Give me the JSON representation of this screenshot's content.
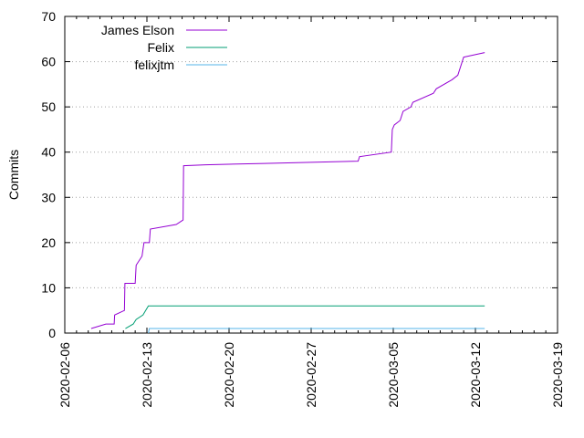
{
  "chart_data": {
    "type": "line",
    "title": "",
    "xlabel": "",
    "ylabel": "Commits",
    "x_type": "date",
    "xlim": [
      "2020-02-06",
      "2020-03-19"
    ],
    "ylim": [
      0,
      70
    ],
    "x_ticks": [
      "2020-02-06",
      "2020-02-13",
      "2020-02-20",
      "2020-02-27",
      "2020-03-05",
      "2020-03-12",
      "2020-03-19"
    ],
    "y_ticks": [
      0,
      10,
      20,
      30,
      40,
      50,
      60,
      70
    ],
    "grid": true,
    "legend_position": "top-left",
    "line_style": "step",
    "series": [
      {
        "name": "James Elson",
        "color": "#9400d3",
        "points": [
          [
            "2020-02-08T06:00",
            1
          ],
          [
            "2020-02-09T12:00",
            2
          ],
          [
            "2020-02-10T05:00",
            2
          ],
          [
            "2020-02-10T06:00",
            4
          ],
          [
            "2020-02-11T02:00",
            5
          ],
          [
            "2020-02-11T03:00",
            11
          ],
          [
            "2020-02-12T00:00",
            11
          ],
          [
            "2020-02-12T02:00",
            15
          ],
          [
            "2020-02-12T14:00",
            17
          ],
          [
            "2020-02-12T18:00",
            20
          ],
          [
            "2020-02-13T05:00",
            20
          ],
          [
            "2020-02-13T07:00",
            23
          ],
          [
            "2020-02-15T12:00",
            24
          ],
          [
            "2020-02-16T02:00",
            25
          ],
          [
            "2020-02-16T03:00",
            37
          ],
          [
            "2020-02-18T00:00",
            37.2
          ],
          [
            "2020-02-23T00:00",
            37.5
          ],
          [
            "2020-03-02T00:00",
            38
          ],
          [
            "2020-03-02T03:00",
            39
          ],
          [
            "2020-03-04T20:00",
            40
          ],
          [
            "2020-03-04T22:00",
            45
          ],
          [
            "2020-03-05T02:00",
            46
          ],
          [
            "2020-03-05T14:00",
            47
          ],
          [
            "2020-03-05T20:00",
            49
          ],
          [
            "2020-03-06T12:00",
            50
          ],
          [
            "2020-03-06T16:00",
            51
          ],
          [
            "2020-03-08T10:00",
            53
          ],
          [
            "2020-03-08T16:00",
            54
          ],
          [
            "2020-03-10T00:00",
            56
          ],
          [
            "2020-03-10T12:00",
            57
          ],
          [
            "2020-03-11T00:00",
            61
          ],
          [
            "2020-03-12T19:00",
            62
          ]
        ]
      },
      {
        "name": "Felix",
        "color": "#009e73",
        "points": [
          [
            "2020-02-11T04:00",
            1
          ],
          [
            "2020-02-11T20:00",
            2
          ],
          [
            "2020-02-12T02:00",
            3
          ],
          [
            "2020-02-12T16:00",
            4
          ],
          [
            "2020-02-13T03:00",
            6
          ],
          [
            "2020-02-13T08:00",
            6
          ],
          [
            "2020-02-20T00:00",
            6
          ],
          [
            "2020-03-12T19:00",
            6
          ]
        ]
      },
      {
        "name": "felixjtm",
        "color": "#56b4e9",
        "points": [
          [
            "2020-02-13T03:00",
            0
          ],
          [
            "2020-02-13T05:00",
            1
          ],
          [
            "2020-02-20T00:00",
            1
          ],
          [
            "2020-03-12T19:00",
            1
          ]
        ]
      }
    ]
  }
}
